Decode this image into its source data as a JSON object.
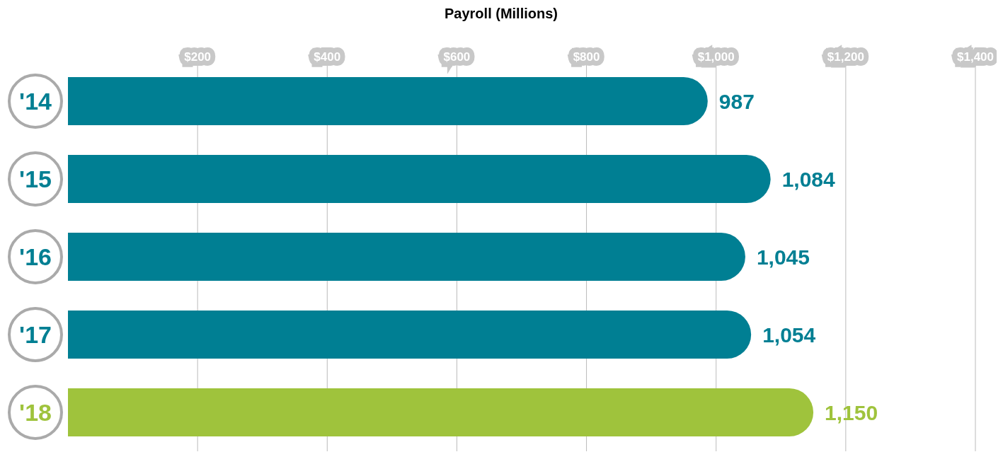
{
  "chart_data": {
    "type": "bar",
    "orientation": "horizontal",
    "title": "Payroll (Millions)",
    "categories": [
      "'14",
      "'15",
      "'16",
      "'17",
      "'18"
    ],
    "values": [
      987,
      1084,
      1045,
      1054,
      1150
    ],
    "value_labels": [
      "987",
      "1,084",
      "1,045",
      "1,054",
      "1,150"
    ],
    "colors": [
      "#007f93",
      "#007f93",
      "#007f93",
      "#007f93",
      "#9fc33c"
    ],
    "xlim": [
      0,
      1400
    ],
    "xticks": [
      {
        "value": 200,
        "label": "$200"
      },
      {
        "value": 400,
        "label": "$400"
      },
      {
        "value": 600,
        "label": "$600"
      },
      {
        "value": 800,
        "label": "$800"
      },
      {
        "value": 1000,
        "label": "$1,000"
      },
      {
        "value": 1200,
        "label": "$1,200"
      },
      {
        "value": 1400,
        "label": "$1,400"
      }
    ],
    "grid": "x",
    "legend": false
  }
}
